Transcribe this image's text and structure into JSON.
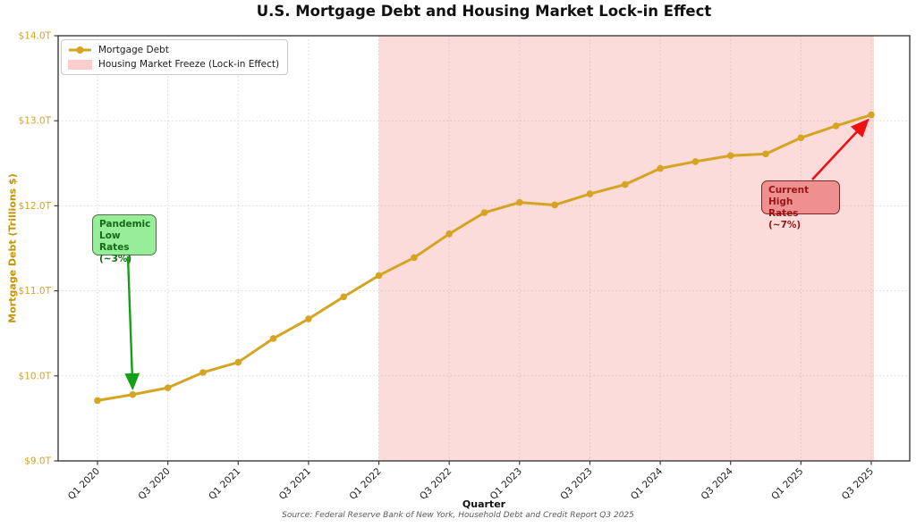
{
  "title": "U.S. Mortgage Debt and Housing Market Lock-in Effect",
  "legend": {
    "line_label": "Mortgage Debt",
    "span_label": "Housing Market Freeze (Lock-in Effect)"
  },
  "annotations": {
    "pandemic": {
      "text": "Pandemic\nLow Rates\n(~3%)",
      "points_to": "Q2 2020"
    },
    "current": {
      "text": "Current High\nRates (~7%)",
      "points_to": "Q3 2025"
    }
  },
  "axes": {
    "ylabel": "Mortgage Debt (Trillions $)",
    "xlabel": "Quarter",
    "ytick_values": [
      9,
      10,
      11,
      12,
      13,
      14
    ],
    "ytick_labels": [
      "$9.0T",
      "$10.0T",
      "$11.0T",
      "$12.0T",
      "$13.0T",
      "$14.0T"
    ]
  },
  "source": "Source: Federal Reserve Bank of New York, Household Debt and Credit Report Q3 2025",
  "colors": {
    "line": "#d5a421",
    "tick_gold": "#d5a421",
    "axis_title_gold": "#c49310",
    "grid": "#d9d9d9",
    "spine": "#3c3c3c",
    "freeze_fill": "rgba(244,124,124,0.28)",
    "green_arrow": "#14a014",
    "red_arrow": "#ee1111"
  },
  "chart_data": {
    "type": "line",
    "title": "U.S. Mortgage Debt and Housing Market Lock-in Effect",
    "xlabel": "Quarter",
    "ylabel": "Mortgage Debt (Trillions $)",
    "ylim": [
      9,
      14
    ],
    "grid": true,
    "legend_position": "upper left",
    "x": [
      "Q1 2020",
      "Q2 2020",
      "Q3 2020",
      "Q4 2020",
      "Q1 2021",
      "Q2 2021",
      "Q3 2021",
      "Q4 2021",
      "Q1 2022",
      "Q2 2022",
      "Q3 2022",
      "Q4 2022",
      "Q1 2023",
      "Q2 2023",
      "Q3 2023",
      "Q4 2023",
      "Q1 2024",
      "Q2 2024",
      "Q3 2024",
      "Q4 2024",
      "Q1 2025",
      "Q2 2025",
      "Q3 2025"
    ],
    "xtick_every": 2,
    "series": [
      {
        "name": "Mortgage Debt",
        "values": [
          9.71,
          9.78,
          9.86,
          10.04,
          10.16,
          10.44,
          10.67,
          10.93,
          11.18,
          11.39,
          11.67,
          11.92,
          12.04,
          12.01,
          12.14,
          12.25,
          12.44,
          12.52,
          12.59,
          12.61,
          12.8,
          12.94,
          13.07
        ]
      }
    ],
    "freeze_span": {
      "from": "Q1 2022",
      "to": "Q3 2025",
      "label": "Housing Market Freeze (Lock-in Effect)"
    }
  }
}
